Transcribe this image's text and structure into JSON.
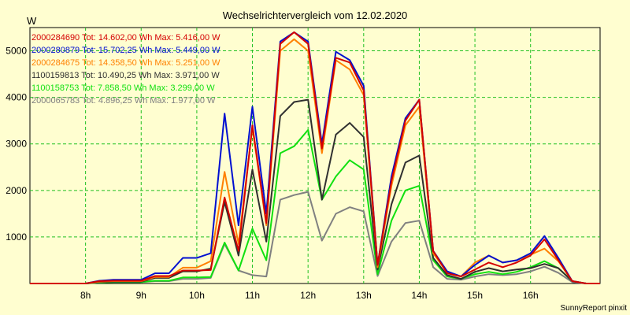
{
  "chart_data": {
    "type": "line",
    "title": "Wechselrichtervergleich vom 12.02.2020",
    "ylabel": "W",
    "credit": "SunnyReport pinxit",
    "ylim": [
      0,
      5500
    ],
    "xlim": [
      7.0,
      17.25
    ],
    "yticks": [
      1000,
      2000,
      3000,
      4000,
      5000
    ],
    "xticks": [
      {
        "value": 8,
        "label": "8h"
      },
      {
        "value": 9,
        "label": "9h"
      },
      {
        "value": 10,
        "label": "10h"
      },
      {
        "value": 11,
        "label": "11h"
      },
      {
        "value": 12,
        "label": "12h"
      },
      {
        "value": 13,
        "label": "13h"
      },
      {
        "value": 14,
        "label": "14h"
      },
      {
        "value": 15,
        "label": "15h"
      },
      {
        "value": 16,
        "label": "16h"
      }
    ],
    "grid": true,
    "grid_color": "#20c020",
    "background": "#fffed0",
    "legend_position": "top-left",
    "x": [
      7.0,
      7.25,
      7.5,
      7.75,
      8.0,
      8.25,
      8.5,
      8.75,
      9.0,
      9.25,
      9.5,
      9.75,
      10.0,
      10.25,
      10.5,
      10.75,
      11.0,
      11.25,
      11.5,
      11.75,
      12.0,
      12.25,
      12.5,
      12.75,
      13.0,
      13.25,
      13.5,
      13.75,
      14.0,
      14.25,
      14.5,
      14.75,
      15.0,
      15.25,
      15.5,
      15.75,
      16.0,
      16.25,
      16.5,
      16.75,
      17.0,
      17.25
    ],
    "series": [
      {
        "label": "2000284690 Tot: 14.602,00 Wh Max: 5.416,00 W",
        "color": "#d40000",
        "values": [
          0,
          0,
          0,
          0,
          0,
          50,
          60,
          60,
          60,
          160,
          160,
          280,
          280,
          290,
          1850,
          700,
          3400,
          1300,
          5150,
          5400,
          5150,
          2900,
          4850,
          4750,
          4150,
          400,
          2200,
          3500,
          3950,
          700,
          220,
          150,
          300,
          450,
          350,
          450,
          600,
          950,
          500,
          50,
          0,
          0
        ]
      },
      {
        "label": "2000280879 Tot: 15.702,25 Wh Max: 5.449,00 W",
        "color": "#0010d0",
        "values": [
          0,
          0,
          0,
          0,
          0,
          60,
          80,
          80,
          80,
          220,
          220,
          550,
          550,
          650,
          3650,
          1250,
          3800,
          1500,
          5200,
          5400,
          5200,
          3000,
          4980,
          4800,
          4250,
          400,
          2300,
          3550,
          3950,
          700,
          260,
          150,
          400,
          600,
          450,
          500,
          650,
          1020,
          550,
          50,
          0,
          0
        ]
      },
      {
        "label": "2000284675 Tot: 14.358,50 Wh Max: 5.251,00 W",
        "color": "#ff8000",
        "values": [
          0,
          0,
          0,
          0,
          0,
          40,
          50,
          50,
          50,
          140,
          140,
          340,
          340,
          480,
          2400,
          850,
          3350,
          1250,
          5000,
          5250,
          5000,
          2800,
          4800,
          4600,
          4050,
          350,
          2100,
          3400,
          3800,
          650,
          240,
          150,
          450,
          600,
          450,
          500,
          620,
          750,
          480,
          50,
          0,
          0
        ]
      },
      {
        "label": "1100159813 Tot: 10.490,25 Wh Max: 3.971,00 W",
        "color": "#303030",
        "values": [
          0,
          0,
          0,
          0,
          0,
          30,
          40,
          40,
          40,
          120,
          120,
          260,
          260,
          320,
          1750,
          600,
          2450,
          900,
          3600,
          3900,
          3950,
          1800,
          3200,
          3450,
          3150,
          300,
          1700,
          2600,
          2750,
          550,
          180,
          100,
          250,
          330,
          260,
          300,
          330,
          420,
          330,
          50,
          0,
          0
        ]
      },
      {
        "label": "1100158753 Tot: 7.858,50 Wh Max: 3.299,00 W",
        "color": "#10e010",
        "values": [
          0,
          0,
          0,
          0,
          0,
          20,
          30,
          30,
          30,
          60,
          60,
          130,
          130,
          140,
          880,
          280,
          1180,
          500,
          2800,
          2950,
          3300,
          1800,
          2300,
          2650,
          2450,
          200,
          1350,
          2000,
          2100,
          500,
          150,
          100,
          200,
          250,
          200,
          250,
          350,
          480,
          330,
          50,
          0,
          0
        ]
      },
      {
        "label": "2000065783 Tot: 4.896,25 Wh Max: 1.977,00 W",
        "color": "#808080",
        "values": [
          0,
          0,
          0,
          0,
          0,
          20,
          30,
          30,
          30,
          50,
          50,
          100,
          100,
          120,
          850,
          280,
          180,
          150,
          1800,
          1900,
          1970,
          920,
          1500,
          1640,
          1550,
          160,
          900,
          1300,
          1350,
          350,
          100,
          80,
          150,
          200,
          180,
          200,
          260,
          360,
          230,
          30,
          0,
          0
        ]
      }
    ]
  }
}
